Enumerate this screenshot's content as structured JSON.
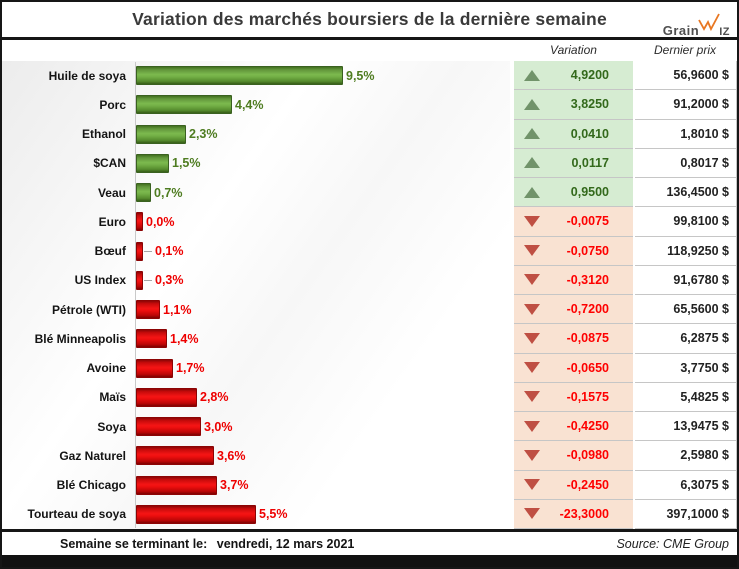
{
  "header": {
    "title": "Variation des marchés boursiers de la dernière semaine",
    "logo": {
      "text_left": "Grain",
      "text_right": "IZ",
      "accent_color": "#e87722"
    }
  },
  "columns": {
    "variation": "Variation",
    "last_price": "Dernier prix"
  },
  "chart_data": {
    "type": "bar",
    "orientation": "horizontal",
    "title": "Variation des marchés boursiers de la dernière semaine",
    "categories": [
      "Huile de soya",
      "Porc",
      "Ethanol",
      "$CAN",
      "Veau",
      "Euro",
      "Bœuf",
      "US Index",
      "Pétrole (WTI)",
      "Blé Minneapolis",
      "Avoine",
      "Maïs",
      "Soya",
      "Gaz Naturel",
      "Blé Chicago",
      "Tourteau de soya"
    ],
    "series": [
      {
        "name": "Variation semaine (%)",
        "values": [
          9.5,
          4.4,
          2.3,
          1.5,
          0.7,
          0.0,
          -0.1,
          -0.3,
          -1.1,
          -1.4,
          -1.7,
          -2.8,
          -3.0,
          -3.6,
          -3.7,
          -5.5
        ]
      },
      {
        "name": "Variation (unités)",
        "values": [
          4.92,
          3.825,
          0.041,
          0.0117,
          0.95,
          -0.0075,
          -0.075,
          -0.312,
          -0.72,
          -0.0875,
          -0.065,
          -0.1575,
          -0.425,
          -0.098,
          -0.245,
          -23.3
        ]
      },
      {
        "name": "Dernier prix ($)",
        "values": [
          56.96,
          91.2,
          1.801,
          0.8017,
          136.45,
          99.81,
          118.925,
          91.678,
          65.56,
          6.2875,
          3.775,
          5.4825,
          13.9475,
          2.598,
          6.3075,
          397.1
        ]
      }
    ],
    "bar_colors": {
      "positive": "#6fae42",
      "negative": "#e81010"
    },
    "xlim": [
      0,
      10
    ],
    "grid": false,
    "legend": false,
    "value_label_format": "absolute percent, one decimal, comma separator"
  },
  "rows": [
    {
      "label": "Huile de soya",
      "pct": "9,5%",
      "pct_value": 9.5,
      "direction": "up",
      "variation": "4,9200",
      "price": "56,9600 $"
    },
    {
      "label": "Porc",
      "pct": "4,4%",
      "pct_value": 4.4,
      "direction": "up",
      "variation": "3,8250",
      "price": "91,2000 $"
    },
    {
      "label": "Ethanol",
      "pct": "2,3%",
      "pct_value": 2.3,
      "direction": "up",
      "variation": "0,0410",
      "price": "1,8010 $"
    },
    {
      "label": "$CAN",
      "pct": "1,5%",
      "pct_value": 1.5,
      "direction": "up",
      "variation": "0,0117",
      "price": "0,8017 $"
    },
    {
      "label": "Veau",
      "pct": "0,7%",
      "pct_value": 0.7,
      "direction": "up",
      "variation": "0,9500",
      "price": "136,4500 $"
    },
    {
      "label": "Euro",
      "pct": "0,0%",
      "pct_value": 0.0,
      "direction": "down",
      "variation": "-0,0075",
      "price": "99,8100 $"
    },
    {
      "label": "Bœuf",
      "pct": "0,1%",
      "pct_value": 0.1,
      "direction": "down",
      "variation": "-0,0750",
      "price": "118,9250 $"
    },
    {
      "label": "US Index",
      "pct": "0,3%",
      "pct_value": 0.3,
      "direction": "down",
      "variation": "-0,3120",
      "price": "91,6780 $"
    },
    {
      "label": "Pétrole (WTI)",
      "pct": "1,1%",
      "pct_value": 1.1,
      "direction": "down",
      "variation": "-0,7200",
      "price": "65,5600 $"
    },
    {
      "label": "Blé Minneapolis",
      "pct": "1,4%",
      "pct_value": 1.4,
      "direction": "down",
      "variation": "-0,0875",
      "price": "6,2875 $"
    },
    {
      "label": "Avoine",
      "pct": "1,7%",
      "pct_value": 1.7,
      "direction": "down",
      "variation": "-0,0650",
      "price": "3,7750 $"
    },
    {
      "label": "Maïs",
      "pct": "2,8%",
      "pct_value": 2.8,
      "direction": "down",
      "variation": "-0,1575",
      "price": "5,4825 $"
    },
    {
      "label": "Soya",
      "pct": "3,0%",
      "pct_value": 3.0,
      "direction": "down",
      "variation": "-0,4250",
      "price": "13,9475 $"
    },
    {
      "label": "Gaz Naturel",
      "pct": "3,6%",
      "pct_value": 3.6,
      "direction": "down",
      "variation": "-0,0980",
      "price": "2,5980 $"
    },
    {
      "label": "Blé Chicago",
      "pct": "3,7%",
      "pct_value": 3.7,
      "direction": "down",
      "variation": "-0,2450",
      "price": "6,3075 $"
    },
    {
      "label": "Tourteau de soya",
      "pct": "5,5%",
      "pct_value": 5.5,
      "direction": "down",
      "variation": "-23,3000",
      "price": "397,1000 $"
    }
  ],
  "footer": {
    "left_label": "Semaine se terminant le: ",
    "left_value": "vendredi, 12 mars 2021",
    "source": "Source: CME Group"
  },
  "colors": {
    "positive_text": "#4e7c20",
    "negative_text": "#ee0000",
    "positive_cell_bg": "#d6ecd2",
    "negative_cell_bg": "#f9e2d2",
    "up_icon": "#71936a",
    "down_icon": "#bf4f43",
    "frame": "#161616"
  }
}
